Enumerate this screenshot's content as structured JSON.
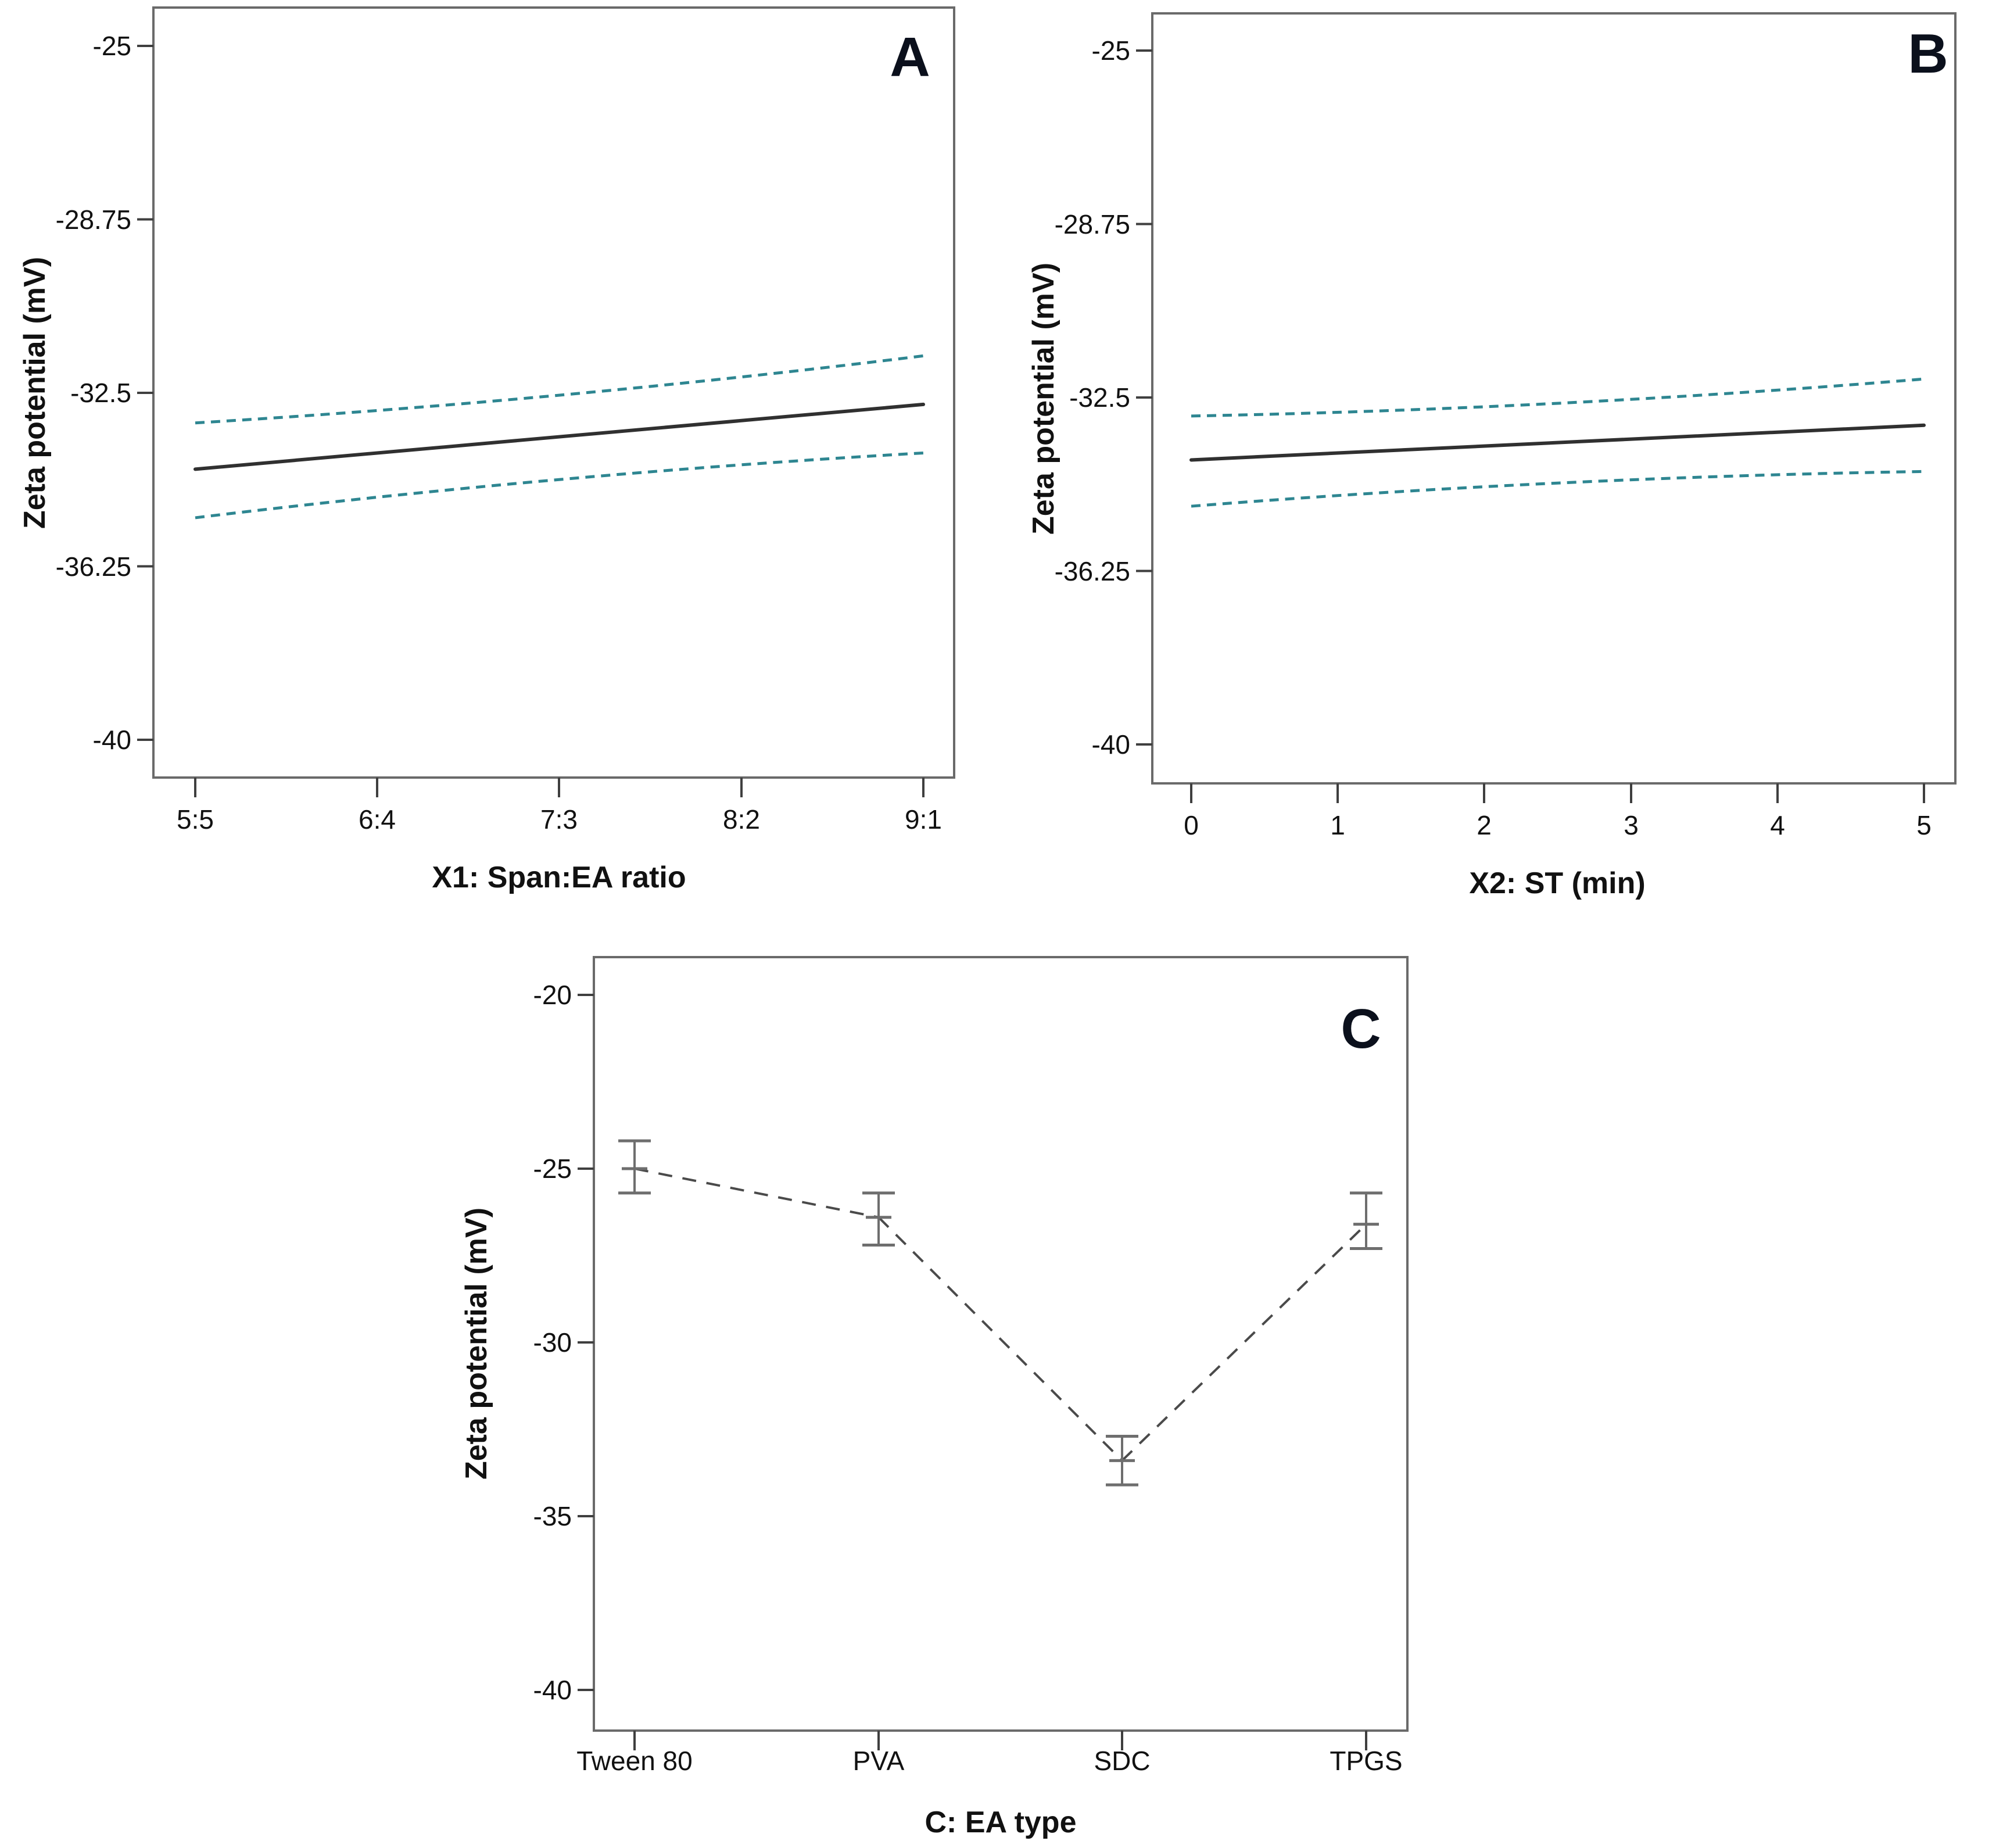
{
  "figure": {
    "description": "Three-panel factor-effect plots of Zeta potential",
    "panels": [
      {
        "label": "A",
        "x_axis": {
          "title": "X1: Span:EA ratio"
        },
        "y_axis": {
          "title": "Zeta potential (mV)"
        }
      },
      {
        "label": "B",
        "x_axis": {
          "title": "X2: ST (min)"
        },
        "y_axis": {
          "title": "Zeta potential (mV)"
        }
      },
      {
        "label": "C",
        "x_axis": {
          "title": "C: EA type"
        },
        "y_axis": {
          "title": "Zeta potential (mV)"
        }
      }
    ]
  },
  "style": {
    "background": "#ffffff",
    "border_color": "#6a6a6a",
    "tick_color": "#3f3f3f",
    "text_color": "#111111",
    "panel_letter_color": "#0b101c",
    "mean_line_color": "#303030",
    "ci_line_color": "#2e8691",
    "error_bar_color": "#6e6e6e",
    "connector_color": "#4a4a4a"
  },
  "chart_data": [
    {
      "panel": "A",
      "type": "line",
      "title": "A",
      "xlabel": "X1: Span:EA ratio",
      "ylabel": "Zeta potential (mV)",
      "x_tick_labels": [
        "5:5",
        "6:4",
        "7:3",
        "8:2",
        "9:1"
      ],
      "y_ticks": [
        -25,
        -28.75,
        -32.5,
        -36.25,
        -40
      ],
      "y_tick_labels": [
        "-25",
        "-28.75",
        "-32.5",
        "-36.25",
        "-40"
      ],
      "ylim": [
        -40.8,
        -24.2
      ],
      "grid": false,
      "legend": "none",
      "series": [
        {
          "name": "predicted mean",
          "style": "solid",
          "x_index": [
            0,
            4
          ],
          "y": [
            -34.15,
            -32.75
          ]
        },
        {
          "name": "95% CI upper",
          "style": "dashed",
          "x_index": [
            0,
            4
          ],
          "y": [
            -33.15,
            -31.7
          ]
        },
        {
          "name": "95% CI lower",
          "style": "dashed",
          "x_index": [
            0,
            4
          ],
          "y": [
            -35.2,
            -33.8
          ]
        }
      ]
    },
    {
      "panel": "B",
      "type": "line",
      "title": "B",
      "xlabel": "X2: ST (min)",
      "ylabel": "Zeta potential (mV)",
      "x_tick_labels": [
        "0",
        "1",
        "2",
        "3",
        "4",
        "5"
      ],
      "y_ticks": [
        -25,
        -28.75,
        -32.5,
        -36.25,
        -40
      ],
      "y_tick_labels": [
        "-25",
        "-28.75",
        "-32.5",
        "-36.25",
        "-40"
      ],
      "ylim": [
        -40.8,
        -24.2
      ],
      "grid": false,
      "legend": "none",
      "series": [
        {
          "name": "predicted mean",
          "style": "solid",
          "x_index": [
            0,
            5
          ],
          "y": [
            -33.85,
            -33.1
          ]
        },
        {
          "name": "95% CI upper",
          "style": "dashed",
          "x_index": [
            0,
            5
          ],
          "y": [
            -32.9,
            -32.1
          ]
        },
        {
          "name": "95% CI lower",
          "style": "dashed",
          "x_index": [
            0,
            5
          ],
          "y": [
            -34.85,
            -34.1
          ]
        }
      ]
    },
    {
      "panel": "C",
      "type": "line-errorbar",
      "title": "C",
      "xlabel": "C: EA type",
      "ylabel": "Zeta potential (mV)",
      "categories": [
        "Tween 80",
        "PVA",
        "SDC",
        "TPGS"
      ],
      "values": [
        -25.0,
        -26.4,
        -33.4,
        -26.6
      ],
      "error_high": [
        -24.2,
        -25.7,
        -32.7,
        -25.7
      ],
      "error_low": [
        -25.7,
        -27.2,
        -34.1,
        -27.3
      ],
      "y_ticks": [
        -20,
        -25,
        -30,
        -35,
        -40
      ],
      "y_tick_labels": [
        "-20",
        "-25",
        "-30",
        "-35",
        "-40"
      ],
      "ylim": [
        -41.2,
        -18.9
      ],
      "grid": false,
      "legend": "none",
      "connector_style": "dashed"
    }
  ]
}
